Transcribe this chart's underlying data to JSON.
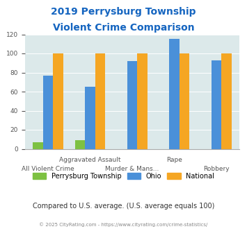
{
  "title_line1": "2019 Perrysburg Township",
  "title_line2": "Violent Crime Comparison",
  "series": {
    "Perrysburg Township": [
      7,
      9,
      0,
      0,
      0
    ],
    "Ohio": [
      77,
      65,
      92,
      115,
      93
    ],
    "National": [
      100,
      100,
      100,
      100,
      100
    ]
  },
  "colors": {
    "Perrysburg Township": "#7dc142",
    "Ohio": "#4a90d9",
    "National": "#f5a623"
  },
  "ylim": [
    0,
    120
  ],
  "yticks": [
    0,
    20,
    40,
    60,
    80,
    100,
    120
  ],
  "bg_color": "#dce9ea",
  "title_color": "#1565c0",
  "note_text": "Compared to U.S. average. (U.S. average equals 100)",
  "note_color": "#333333",
  "footer_text": "© 2025 CityRating.com - https://www.cityrating.com/crime-statistics/",
  "footer_color": "#888888",
  "row1_labels": [
    "",
    "Aggravated Assault",
    "",
    "Rape",
    ""
  ],
  "row2_labels": [
    "All Violent Crime",
    "",
    "Murder & Mans...",
    "",
    "Robbery"
  ]
}
